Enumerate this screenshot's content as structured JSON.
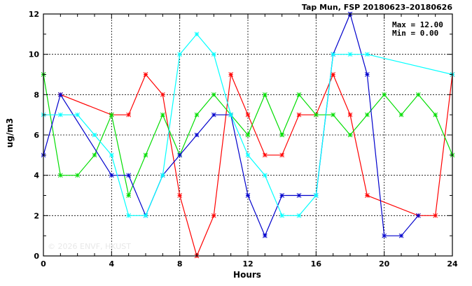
{
  "chart_data": {
    "type": "line",
    "title": "Tap Mun, FSP 20180623–20180626",
    "xlabel": "Hours",
    "ylabel": "ug/m3",
    "xlim": [
      0,
      24
    ],
    "ylim": [
      0,
      12
    ],
    "xticks": [
      0,
      4,
      8,
      12,
      16,
      20,
      24
    ],
    "yticks": [
      0,
      2,
      4,
      6,
      8,
      10,
      12
    ],
    "grid": true,
    "annotations": {
      "max_text": "Max = 12.00",
      "min_text": "Min =  0.00",
      "watermark": "© 2026  ENVF, HKUST"
    },
    "series": [
      {
        "color": "#ff0000",
        "points": [
          [
            1,
            8
          ],
          [
            4,
            7
          ],
          [
            5,
            7
          ],
          [
            6,
            9
          ],
          [
            7,
            8
          ],
          [
            8,
            3
          ],
          [
            9,
            0
          ],
          [
            10,
            2
          ],
          [
            11,
            9
          ],
          [
            12,
            7
          ],
          [
            13,
            5
          ],
          [
            14,
            5
          ],
          [
            15,
            7
          ],
          [
            16,
            7
          ],
          [
            17,
            9
          ],
          [
            18,
            7
          ],
          [
            19,
            3
          ],
          [
            22,
            2
          ],
          [
            23,
            2
          ],
          [
            24,
            9
          ]
        ]
      },
      {
        "color": "#00dd00",
        "points": [
          [
            0,
            9
          ],
          [
            1,
            4
          ],
          [
            2,
            4
          ],
          [
            3,
            5
          ],
          [
            4,
            7
          ],
          [
            5,
            3
          ],
          [
            6,
            5
          ],
          [
            7,
            7
          ],
          [
            8,
            5
          ],
          [
            9,
            7
          ],
          [
            10,
            8
          ],
          [
            11,
            7
          ],
          [
            12,
            6
          ],
          [
            13,
            8
          ],
          [
            14,
            6
          ],
          [
            15,
            8
          ],
          [
            16,
            7
          ],
          [
            17,
            7
          ],
          [
            18,
            6
          ],
          [
            19,
            7
          ],
          [
            20,
            8
          ],
          [
            21,
            7
          ],
          [
            22,
            8
          ],
          [
            23,
            7
          ],
          [
            24,
            5
          ]
        ]
      },
      {
        "color": "#0000cc",
        "points": [
          [
            0,
            5
          ],
          [
            1,
            8
          ],
          [
            4,
            4
          ],
          [
            5,
            4
          ],
          [
            6,
            2
          ],
          [
            7,
            4
          ],
          [
            8,
            5
          ],
          [
            9,
            6
          ],
          [
            10,
            7
          ],
          [
            11,
            7
          ],
          [
            12,
            3
          ],
          [
            13,
            1
          ],
          [
            14,
            3
          ],
          [
            15,
            3
          ],
          [
            16,
            3
          ],
          [
            17,
            10
          ],
          [
            18,
            12
          ],
          [
            19,
            9
          ],
          [
            20,
            1
          ],
          [
            21,
            1
          ],
          [
            22,
            2
          ]
        ]
      },
      {
        "color": "#00ffff",
        "points": [
          [
            0,
            7
          ],
          [
            1,
            7
          ],
          [
            2,
            7
          ],
          [
            3,
            6
          ],
          [
            4,
            5
          ],
          [
            5,
            2
          ],
          [
            6,
            2
          ],
          [
            7,
            4
          ],
          [
            8,
            10
          ],
          [
            9,
            11
          ],
          [
            10,
            10
          ],
          [
            11,
            7
          ],
          [
            12,
            5
          ],
          [
            13,
            4
          ],
          [
            14,
            2
          ],
          [
            15,
            2
          ],
          [
            16,
            3
          ],
          [
            17,
            10
          ],
          [
            18,
            10
          ],
          [
            19,
            10
          ],
          [
            24,
            9
          ]
        ]
      }
    ]
  }
}
